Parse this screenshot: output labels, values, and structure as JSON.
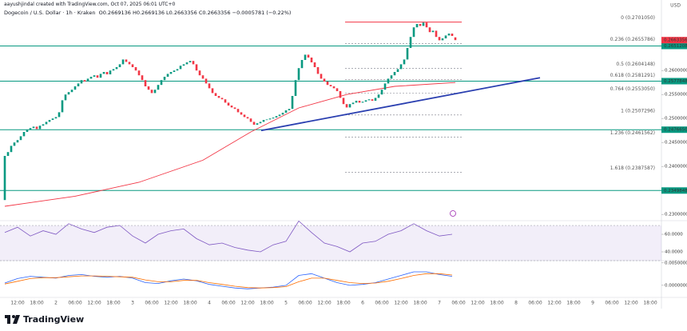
{
  "header": {
    "credit": "aayushjindal created with TradingView.com, Oct 07, 2025 06:01 UTC+0",
    "symbol": "Dogecoin / U.S. Dollar · 1h · Kraken",
    "ohlc": "O0.2669136 H0.2669136 L0.2663356 C0.2663356 −0.0005781 (−0.22%)",
    "currency": "USD"
  },
  "footer": {
    "brand": "TradingView"
  },
  "chart_data": [
    {
      "type": "candlestick",
      "up_color": "#089981",
      "down_color": "#f23645",
      "xlim": [
        6.5,
        213.5
      ],
      "ylim": [
        0.2287,
        0.2747
      ],
      "xticks": [
        {
          "value": 12,
          "label": "12:00"
        },
        {
          "value": 18,
          "label": "18:00"
        },
        {
          "value": 24,
          "label": "2"
        },
        {
          "value": 30,
          "label": "06:00"
        },
        {
          "value": 36,
          "label": "12:00"
        },
        {
          "value": 42,
          "label": "18:00"
        },
        {
          "value": 48,
          "label": "3"
        },
        {
          "value": 54,
          "label": "06:00"
        },
        {
          "value": 60,
          "label": "12:00"
        },
        {
          "value": 66,
          "label": "18:00"
        },
        {
          "value": 72,
          "label": "4"
        },
        {
          "value": 78,
          "label": "06:00"
        },
        {
          "value": 84,
          "label": "12:00"
        },
        {
          "value": 90,
          "label": "18:00"
        },
        {
          "value": 96,
          "label": "5"
        },
        {
          "value": 102,
          "label": "06:00"
        },
        {
          "value": 108,
          "label": "12:00"
        },
        {
          "value": 114,
          "label": "18:00"
        },
        {
          "value": 120,
          "label": "6"
        },
        {
          "value": 126,
          "label": "06:00"
        },
        {
          "value": 132,
          "label": "12:00"
        },
        {
          "value": 138,
          "label": "18:00"
        },
        {
          "value": 144,
          "label": "7"
        },
        {
          "value": 150,
          "label": "06:00"
        },
        {
          "value": 156,
          "label": "12:00"
        },
        {
          "value": 162,
          "label": "18:00"
        },
        {
          "value": 168,
          "label": "8"
        },
        {
          "value": 174,
          "label": "06:00"
        },
        {
          "value": 180,
          "label": "12:00"
        },
        {
          "value": 186,
          "label": "18:00"
        },
        {
          "value": 192,
          "label": "9"
        },
        {
          "value": 198,
          "label": "06:00"
        },
        {
          "value": 204,
          "label": "12:00"
        },
        {
          "value": 210,
          "label": "18:00"
        }
      ],
      "yticks": [
        {
          "value": 0.26,
          "label": "0.2600000"
        },
        {
          "value": 0.255,
          "label": "0.2550000"
        },
        {
          "value": 0.25,
          "label": "0.2500000"
        },
        {
          "value": 0.245,
          "label": "0.2450000"
        },
        {
          "value": 0.24,
          "label": "0.2400000"
        },
        {
          "value": 0.23,
          "label": "0.2300000"
        }
      ],
      "x": [
        8,
        9,
        10,
        11,
        12,
        13,
        14,
        15,
        16,
        17,
        18,
        19,
        20,
        21,
        22,
        23,
        24,
        25,
        26,
        27,
        28,
        29,
        30,
        31,
        32,
        33,
        34,
        35,
        36,
        37,
        38,
        39,
        40,
        41,
        42,
        43,
        44,
        45,
        46,
        47,
        48,
        49,
        50,
        51,
        52,
        53,
        54,
        55,
        56,
        57,
        58,
        59,
        60,
        61,
        62,
        63,
        64,
        65,
        66,
        67,
        68,
        69,
        70,
        71,
        72,
        73,
        74,
        75,
        76,
        77,
        78,
        79,
        80,
        81,
        82,
        83,
        84,
        85,
        86,
        87,
        88,
        89,
        90,
        91,
        92,
        93,
        94,
        95,
        96,
        97,
        98,
        99,
        100,
        101,
        102,
        103,
        104,
        105,
        106,
        107,
        108,
        109,
        110,
        111,
        112,
        113,
        114,
        115,
        116,
        117,
        118,
        119,
        120,
        121,
        122,
        123,
        124,
        125,
        126,
        127,
        128,
        129,
        130,
        131,
        132,
        133,
        134,
        135,
        136,
        137,
        138,
        139,
        140,
        141,
        142,
        143,
        144,
        145,
        146,
        147,
        148,
        149
      ],
      "open": [
        0.233,
        0.2422,
        0.243,
        0.2443,
        0.245,
        0.2455,
        0.2463,
        0.2472,
        0.2477,
        0.248,
        0.2483,
        0.2478,
        0.2485,
        0.2488,
        0.2493,
        0.2497,
        0.25,
        0.2503,
        0.2513,
        0.2538,
        0.255,
        0.2555,
        0.256,
        0.2567,
        0.2573,
        0.258,
        0.2577,
        0.2583,
        0.2587,
        0.259,
        0.2585,
        0.2593,
        0.2597,
        0.2592,
        0.26,
        0.2603,
        0.2607,
        0.2613,
        0.2623,
        0.2618,
        0.2613,
        0.2607,
        0.26,
        0.259,
        0.258,
        0.2567,
        0.256,
        0.2553,
        0.256,
        0.257,
        0.258,
        0.2587,
        0.2593,
        0.2597,
        0.26,
        0.2603,
        0.261,
        0.2613,
        0.2617,
        0.262,
        0.2613,
        0.26,
        0.259,
        0.2583,
        0.2573,
        0.2563,
        0.2553,
        0.2547,
        0.2543,
        0.254,
        0.2533,
        0.2527,
        0.2523,
        0.252,
        0.2513,
        0.2508,
        0.2503,
        0.25,
        0.2493,
        0.2487,
        0.249,
        0.2493,
        0.2497,
        0.2498,
        0.25,
        0.2502,
        0.2505,
        0.2508,
        0.2512,
        0.2517,
        0.252,
        0.2547,
        0.258,
        0.2605,
        0.2622,
        0.2633,
        0.2627,
        0.2617,
        0.2607,
        0.2593,
        0.2583,
        0.2577,
        0.257,
        0.2567,
        0.2563,
        0.2557,
        0.2543,
        0.253,
        0.2523,
        0.253,
        0.2533,
        0.2537,
        0.2533,
        0.2535,
        0.2538,
        0.254,
        0.2537,
        0.2543,
        0.255,
        0.256,
        0.2573,
        0.2583,
        0.259,
        0.2597,
        0.2603,
        0.2613,
        0.2623,
        0.2647,
        0.267,
        0.269,
        0.2697,
        0.2693,
        0.27,
        0.269,
        0.268,
        0.2683,
        0.267,
        0.2663,
        0.2667,
        0.2673,
        0.2677,
        0.2669136
      ],
      "close": [
        0.2422,
        0.243,
        0.2443,
        0.245,
        0.2455,
        0.2463,
        0.2472,
        0.2477,
        0.248,
        0.2483,
        0.2478,
        0.2485,
        0.2488,
        0.2493,
        0.2497,
        0.25,
        0.2503,
        0.2513,
        0.2538,
        0.255,
        0.2555,
        0.256,
        0.2567,
        0.2573,
        0.258,
        0.2577,
        0.2583,
        0.2587,
        0.259,
        0.2585,
        0.2593,
        0.2597,
        0.2592,
        0.26,
        0.2603,
        0.2607,
        0.2613,
        0.2623,
        0.2618,
        0.2613,
        0.2607,
        0.26,
        0.259,
        0.258,
        0.2567,
        0.256,
        0.2553,
        0.256,
        0.257,
        0.258,
        0.2587,
        0.2593,
        0.2597,
        0.26,
        0.2603,
        0.261,
        0.2613,
        0.2617,
        0.262,
        0.2613,
        0.26,
        0.259,
        0.2583,
        0.2573,
        0.2563,
        0.2553,
        0.2547,
        0.2543,
        0.254,
        0.2533,
        0.2527,
        0.2523,
        0.252,
        0.2513,
        0.2508,
        0.2503,
        0.25,
        0.2493,
        0.2487,
        0.249,
        0.2493,
        0.2497,
        0.2498,
        0.25,
        0.2502,
        0.2505,
        0.2508,
        0.2512,
        0.2517,
        0.252,
        0.2547,
        0.258,
        0.2605,
        0.2622,
        0.2633,
        0.2627,
        0.2617,
        0.2607,
        0.2593,
        0.2583,
        0.2577,
        0.257,
        0.2567,
        0.2563,
        0.2557,
        0.2543,
        0.253,
        0.2523,
        0.253,
        0.2533,
        0.2537,
        0.2533,
        0.2535,
        0.2538,
        0.254,
        0.2537,
        0.2543,
        0.255,
        0.256,
        0.2573,
        0.2583,
        0.259,
        0.2597,
        0.2603,
        0.2613,
        0.2623,
        0.2647,
        0.267,
        0.269,
        0.2697,
        0.2693,
        0.27,
        0.269,
        0.268,
        0.2683,
        0.267,
        0.2663,
        0.2667,
        0.2673,
        0.2677,
        0.2672,
        0.2663356
      ],
      "lines": [
        {
          "color": "#f23645",
          "x": [
            8,
            30,
            50,
            70,
            85,
            100,
            115,
            130,
            149
          ],
          "values": [
            0.2317,
            0.2338,
            0.2367,
            0.2413,
            0.2472,
            0.2522,
            0.255,
            0.2567,
            0.2575
          ]
        },
        {
          "color": "#2a3fb0",
          "x": [
            88.25,
            175.5
          ],
          "values": [
            0.2475,
            0.2585
          ]
        }
      ],
      "levels": [
        {
          "value": 0.270105,
          "label": "0 (0.2701050)",
          "color": "#f23645"
        },
        {
          "value": 0.2655786,
          "label": "0.236 (0.2655786)",
          "color": "#787b86"
        },
        {
          "value": 0.2604148,
          "label": "0.5 (0.2604148)",
          "color": "#787b86"
        },
        {
          "value": 0.2581291,
          "label": "0.618 (0.2581291)",
          "color": "#787b86"
        },
        {
          "value": 0.255305,
          "label": "0.764 (0.2553050)",
          "color": "#787b86"
        },
        {
          "value": 0.2507296,
          "label": "1 (0.2507296)",
          "color": "#787b86"
        },
        {
          "value": 0.2461562,
          "label": "1.236 (0.2461562)",
          "color": "#787b86"
        },
        {
          "value": 0.2387587,
          "label": "1.618 (0.2387587)",
          "color": "#787b86"
        }
      ],
      "supports": [
        {
          "value": 0.2651208,
          "label": "0.2651208"
        },
        {
          "value": 0.2577848,
          "label": "0.2577848"
        },
        {
          "value": 0.247665,
          "label": "0.2476650"
        },
        {
          "value": 0.2349848,
          "label": "0.2349848"
        }
      ],
      "support_color": "#089981",
      "last_price": {
        "value": 0.2663356,
        "label": "0.2663356"
      }
    },
    {
      "type": "line",
      "ylim": [
        30,
        75.5
      ],
      "band": [
        30,
        70
      ],
      "band_color": "#7e57c2",
      "yticks": [
        {
          "value": 60,
          "label": "60.0000"
        },
        {
          "value": 40,
          "label": "40.0000"
        }
      ],
      "x": [
        8,
        12,
        16,
        20,
        24,
        28,
        32,
        36,
        40,
        44,
        48,
        52,
        56,
        60,
        64,
        68,
        72,
        76,
        80,
        84,
        88,
        92,
        96,
        100,
        104,
        108,
        112,
        116,
        120,
        124,
        128,
        132,
        136,
        140,
        144,
        148
      ],
      "series": [
        {
          "color": "#7e57c2",
          "values": [
            62,
            68,
            58,
            64,
            60,
            72,
            66,
            62,
            68,
            70,
            58,
            50,
            60,
            64,
            66,
            55,
            48,
            50,
            45,
            42,
            40,
            48,
            52,
            75,
            62,
            50,
            46,
            40,
            50,
            52,
            60,
            64,
            72,
            64,
            58,
            60
          ]
        }
      ]
    },
    {
      "type": "line",
      "ylim": [
        -0.0027,
        0.0055
      ],
      "yticks": [
        {
          "value": 0.005,
          "label": "0.0050000"
        },
        {
          "value": 0,
          "label": "0.0000000"
        }
      ],
      "x": [
        8,
        12,
        16,
        20,
        24,
        28,
        32,
        36,
        40,
        44,
        48,
        52,
        56,
        60,
        64,
        68,
        72,
        76,
        80,
        84,
        88,
        92,
        96,
        100,
        104,
        108,
        112,
        116,
        120,
        124,
        128,
        132,
        136,
        140,
        144,
        148
      ],
      "series": [
        {
          "color": "#2962ff",
          "values": [
            0.0005,
            0.0015,
            0.002,
            0.0018,
            0.0016,
            0.0022,
            0.0024,
            0.002,
            0.0018,
            0.002,
            0.0016,
            0.0006,
            0.0004,
            0.001,
            0.0014,
            0.001,
            0.0002,
            -0.0002,
            -0.0006,
            -0.0008,
            -0.0006,
            -0.0004,
            0.0,
            0.0022,
            0.0026,
            0.0016,
            0.0006,
            0.0,
            0.0002,
            0.0006,
            0.0014,
            0.0022,
            0.003,
            0.003,
            0.0024,
            0.002
          ]
        },
        {
          "color": "#ff6d00",
          "values": [
            0.0003,
            0.0009,
            0.0015,
            0.0017,
            0.0017,
            0.0019,
            0.0021,
            0.0021,
            0.002,
            0.0019,
            0.0018,
            0.0012,
            0.0008,
            0.0008,
            0.0011,
            0.0011,
            0.0006,
            0.0002,
            -0.0002,
            -0.0005,
            -0.0006,
            -0.0005,
            -0.0003,
            0.0008,
            0.0016,
            0.0016,
            0.0011,
            0.0006,
            0.0004,
            0.0005,
            0.0009,
            0.0015,
            0.0022,
            0.0026,
            0.0026,
            0.0023
          ]
        }
      ]
    }
  ]
}
